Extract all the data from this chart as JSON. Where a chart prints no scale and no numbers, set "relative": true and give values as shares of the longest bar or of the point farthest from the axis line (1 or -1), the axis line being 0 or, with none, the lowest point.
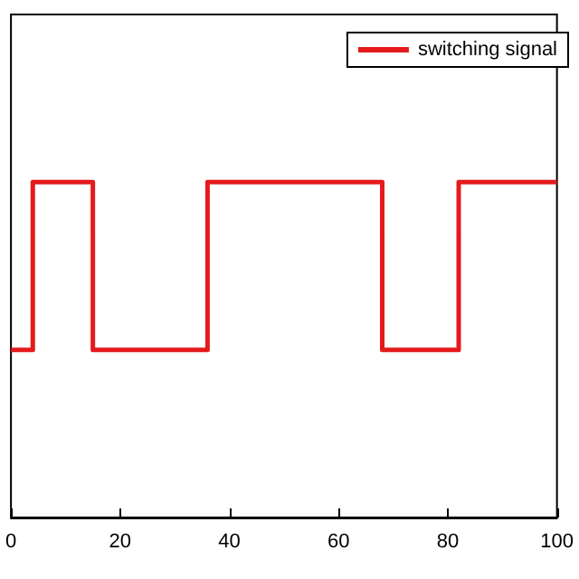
{
  "chart_data": {
    "type": "step",
    "relative": true,
    "x": [
      0,
      4,
      15,
      36,
      68,
      82,
      100
    ],
    "series": [
      {
        "name": "switching signal",
        "color": "#e41a1c",
        "values": [
          0.5,
          1,
          0.5,
          1,
          0.5,
          1,
          1
        ]
      }
    ],
    "xlim": [
      0,
      100
    ],
    "xticks": [
      0,
      20,
      40,
      60,
      80,
      100
    ],
    "legend": "top right",
    "grid": false,
    "marker": "none",
    "line_style": "solid"
  }
}
